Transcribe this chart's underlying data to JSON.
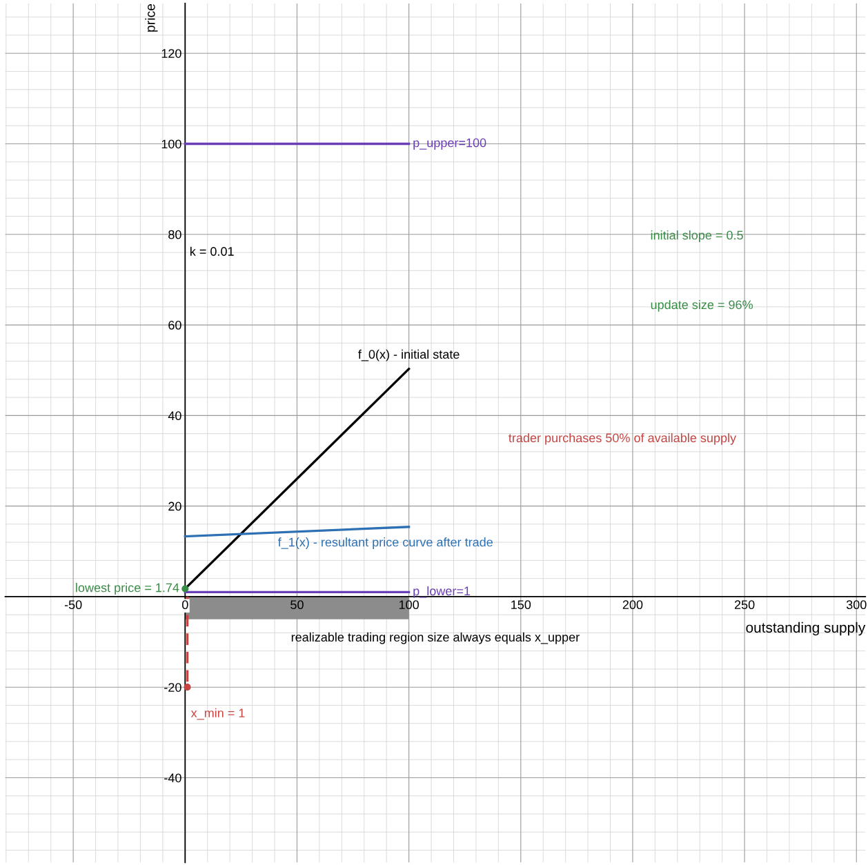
{
  "chart_data": {
    "type": "line",
    "xlabel": "outstanding supply",
    "ylabel": "price",
    "xlim": [
      -80.4,
      304
    ],
    "ylim": [
      -58.7,
      131
    ],
    "xticks": [
      -50,
      0,
      50,
      100,
      150,
      200,
      250,
      300
    ],
    "yticks": [
      -40,
      -20,
      {
        "value": 0,
        "label": null
      },
      20,
      40,
      60,
      80,
      100,
      120
    ],
    "grid": true,
    "series": [
      {
        "type": "area",
        "color": "#8c8c8c",
        "x": [
          0,
          100
        ],
        "values": [
          -5,
          -5
        ]
      },
      {
        "name": "p_upper=100",
        "color": "#6a3fb5",
        "x": [
          0,
          100
        ],
        "values": [
          100,
          100
        ]
      },
      {
        "name": "p_lower=1",
        "color": "#6a3fb5",
        "x": [
          0,
          100
        ],
        "values": [
          1,
          1
        ]
      },
      {
        "name": "f_0(x) - initial state",
        "color": "#000000",
        "x": [
          0,
          100
        ],
        "values": [
          1.74,
          50.3
        ]
      },
      {
        "name": "f_1(x) - resultant price curve after trade",
        "color": "#2d70b3",
        "x": [
          0,
          100
        ],
        "values": [
          13.3,
          15.4
        ]
      },
      {
        "color": "#c74440",
        "line_style": "dashed",
        "x": [
          1,
          1
        ],
        "values": [
          0,
          -20
        ]
      },
      {
        "type": "scatter",
        "name": "x_min = 1",
        "color": "#c74440",
        "marker": "circle",
        "x": [
          1
        ],
        "values": [
          -20
        ]
      },
      {
        "type": "scatter",
        "name": "lowest price = 1.74",
        "color": "#388c46",
        "marker": "circle",
        "x": [
          0
        ],
        "values": [
          1.74
        ]
      }
    ],
    "annotations": [
      "k = 0.01",
      "initial slope = 0.5",
      "update size = 96%",
      "trader purchases 50% of available supply",
      "realizable trading region size always equals x_upper"
    ]
  }
}
